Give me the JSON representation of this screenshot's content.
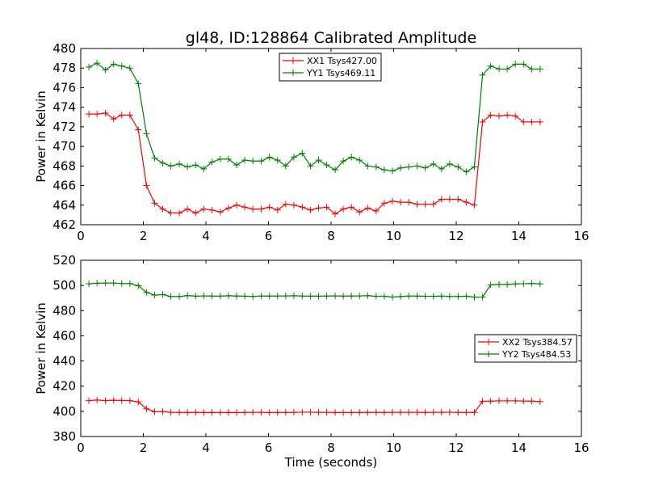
{
  "title": "gl48, ID:128864 Calibrated Amplitude",
  "colors": {
    "xx": "#ff0000",
    "yy": "#008000",
    "frame": "#000000",
    "background": "#ffffff"
  },
  "chart_data": [
    {
      "type": "line",
      "marker": "+",
      "xlabel": "",
      "ylabel": "Power in Kelvin",
      "xlim": [
        0,
        16
      ],
      "ylim": [
        462,
        480
      ],
      "xticks": [
        "0",
        "2",
        "4",
        "6",
        "8",
        "10",
        "12",
        "14",
        "16"
      ],
      "yticks": [
        "462",
        "464",
        "466",
        "468",
        "470",
        "472",
        "474",
        "476",
        "478",
        "480"
      ],
      "grid": false,
      "legend": "upper-center",
      "x": [
        0.26,
        0.52,
        0.79,
        1.05,
        1.31,
        1.57,
        1.84,
        2.1,
        2.36,
        2.62,
        2.88,
        3.15,
        3.41,
        3.67,
        3.93,
        4.19,
        4.46,
        4.72,
        4.98,
        5.24,
        5.5,
        5.77,
        6.03,
        6.29,
        6.55,
        6.81,
        7.08,
        7.34,
        7.6,
        7.86,
        8.13,
        8.39,
        8.65,
        8.91,
        9.17,
        9.44,
        9.7,
        9.96,
        10.22,
        10.48,
        10.75,
        11.01,
        11.27,
        11.53,
        11.79,
        12.06,
        12.32,
        12.58,
        12.84,
        13.1,
        13.37,
        13.63,
        13.89,
        14.15,
        14.41,
        14.68
      ],
      "series": [
        {
          "name": "XX1 Tsys427.00",
          "color": "#ff0000",
          "values": [
            473.3,
            473.3,
            473.4,
            472.8,
            473.2,
            473.2,
            471.7,
            466.0,
            464.2,
            463.6,
            463.2,
            463.2,
            463.6,
            463.2,
            463.6,
            463.5,
            463.3,
            463.7,
            464.0,
            463.8,
            463.6,
            463.6,
            463.8,
            463.5,
            464.1,
            464.0,
            463.8,
            463.5,
            463.7,
            463.8,
            463.1,
            463.6,
            463.8,
            463.3,
            463.7,
            463.4,
            464.2,
            464.4,
            464.3,
            464.3,
            464.1,
            464.1,
            464.1,
            464.6,
            464.6,
            464.6,
            464.3,
            464.0,
            472.5,
            473.2,
            473.1,
            473.2,
            473.1,
            472.5,
            472.5,
            472.5
          ]
        },
        {
          "name": "YY1 Tsys469.11",
          "color": "#008000",
          "values": [
            478.1,
            478.5,
            477.8,
            478.4,
            478.2,
            478.0,
            476.4,
            471.3,
            468.8,
            468.3,
            468.0,
            468.2,
            467.9,
            468.1,
            467.7,
            468.4,
            468.7,
            468.7,
            468.1,
            468.6,
            468.5,
            468.5,
            468.9,
            468.6,
            468.0,
            468.9,
            469.3,
            468.0,
            468.6,
            468.1,
            467.6,
            468.5,
            468.9,
            468.6,
            468.0,
            467.9,
            467.6,
            467.5,
            467.8,
            467.9,
            468.0,
            467.8,
            468.2,
            467.7,
            468.2,
            467.9,
            467.4,
            467.9,
            477.3,
            478.2,
            477.9,
            477.9,
            478.4,
            478.4,
            477.9,
            477.9
          ]
        }
      ]
    },
    {
      "type": "line",
      "marker": "+",
      "xlabel": "Time (seconds)",
      "ylabel": "Power in Kelvin",
      "xlim": [
        0,
        16
      ],
      "ylim": [
        380,
        520
      ],
      "xticks": [
        "0",
        "2",
        "4",
        "6",
        "8",
        "10",
        "12",
        "14",
        "16"
      ],
      "yticks": [
        "380",
        "400",
        "420",
        "440",
        "460",
        "480",
        "500",
        "520"
      ],
      "grid": false,
      "legend": "center-right",
      "x": [
        0.26,
        0.52,
        0.79,
        1.05,
        1.31,
        1.57,
        1.84,
        2.1,
        2.36,
        2.62,
        2.88,
        3.15,
        3.41,
        3.67,
        3.93,
        4.19,
        4.46,
        4.72,
        4.98,
        5.24,
        5.5,
        5.77,
        6.03,
        6.29,
        6.55,
        6.81,
        7.08,
        7.34,
        7.6,
        7.86,
        8.13,
        8.39,
        8.65,
        8.91,
        9.17,
        9.44,
        9.7,
        9.96,
        10.22,
        10.48,
        10.75,
        11.01,
        11.27,
        11.53,
        11.79,
        12.06,
        12.32,
        12.58,
        12.84,
        13.1,
        13.37,
        13.63,
        13.89,
        14.15,
        14.41,
        14.68
      ],
      "series": [
        {
          "name": "XX2 Tsys384.57",
          "color": "#ff0000",
          "values": [
            408.5,
            409.0,
            408.5,
            408.8,
            408.6,
            408.5,
            407.5,
            402.0,
            399.7,
            399.8,
            399.2,
            399.1,
            399.1,
            399.2,
            399.0,
            399.1,
            399.0,
            399.1,
            399.0,
            399.1,
            399.2,
            399.2,
            399.0,
            399.1,
            399.1,
            399.2,
            399.3,
            399.3,
            399.2,
            399.2,
            399.1,
            399.0,
            399.0,
            399.2,
            399.1,
            399.2,
            399.0,
            399.2,
            399.2,
            399.2,
            399.2,
            399.1,
            399.2,
            399.2,
            399.3,
            399.1,
            399.2,
            399.1,
            408.0,
            408.1,
            408.3,
            408.3,
            408.3,
            408.2,
            408.1,
            407.8
          ]
        },
        {
          "name": "YY2 Tsys484.53",
          "color": "#008000",
          "values": [
            501.3,
            501.8,
            501.9,
            501.9,
            501.5,
            501.5,
            499.8,
            494.5,
            492.3,
            492.8,
            491.2,
            491.2,
            492.0,
            491.5,
            491.7,
            491.6,
            491.5,
            491.8,
            491.6,
            491.5,
            491.3,
            491.6,
            491.6,
            491.6,
            491.7,
            491.8,
            491.6,
            491.5,
            491.5,
            491.6,
            491.7,
            491.6,
            491.6,
            491.7,
            491.9,
            491.4,
            491.4,
            490.8,
            491.2,
            491.6,
            491.6,
            491.4,
            491.4,
            491.5,
            491.3,
            491.3,
            491.5,
            490.7,
            490.8,
            500.5,
            500.8,
            500.8,
            501.2,
            501.4,
            501.6,
            501.2
          ]
        }
      ]
    }
  ]
}
